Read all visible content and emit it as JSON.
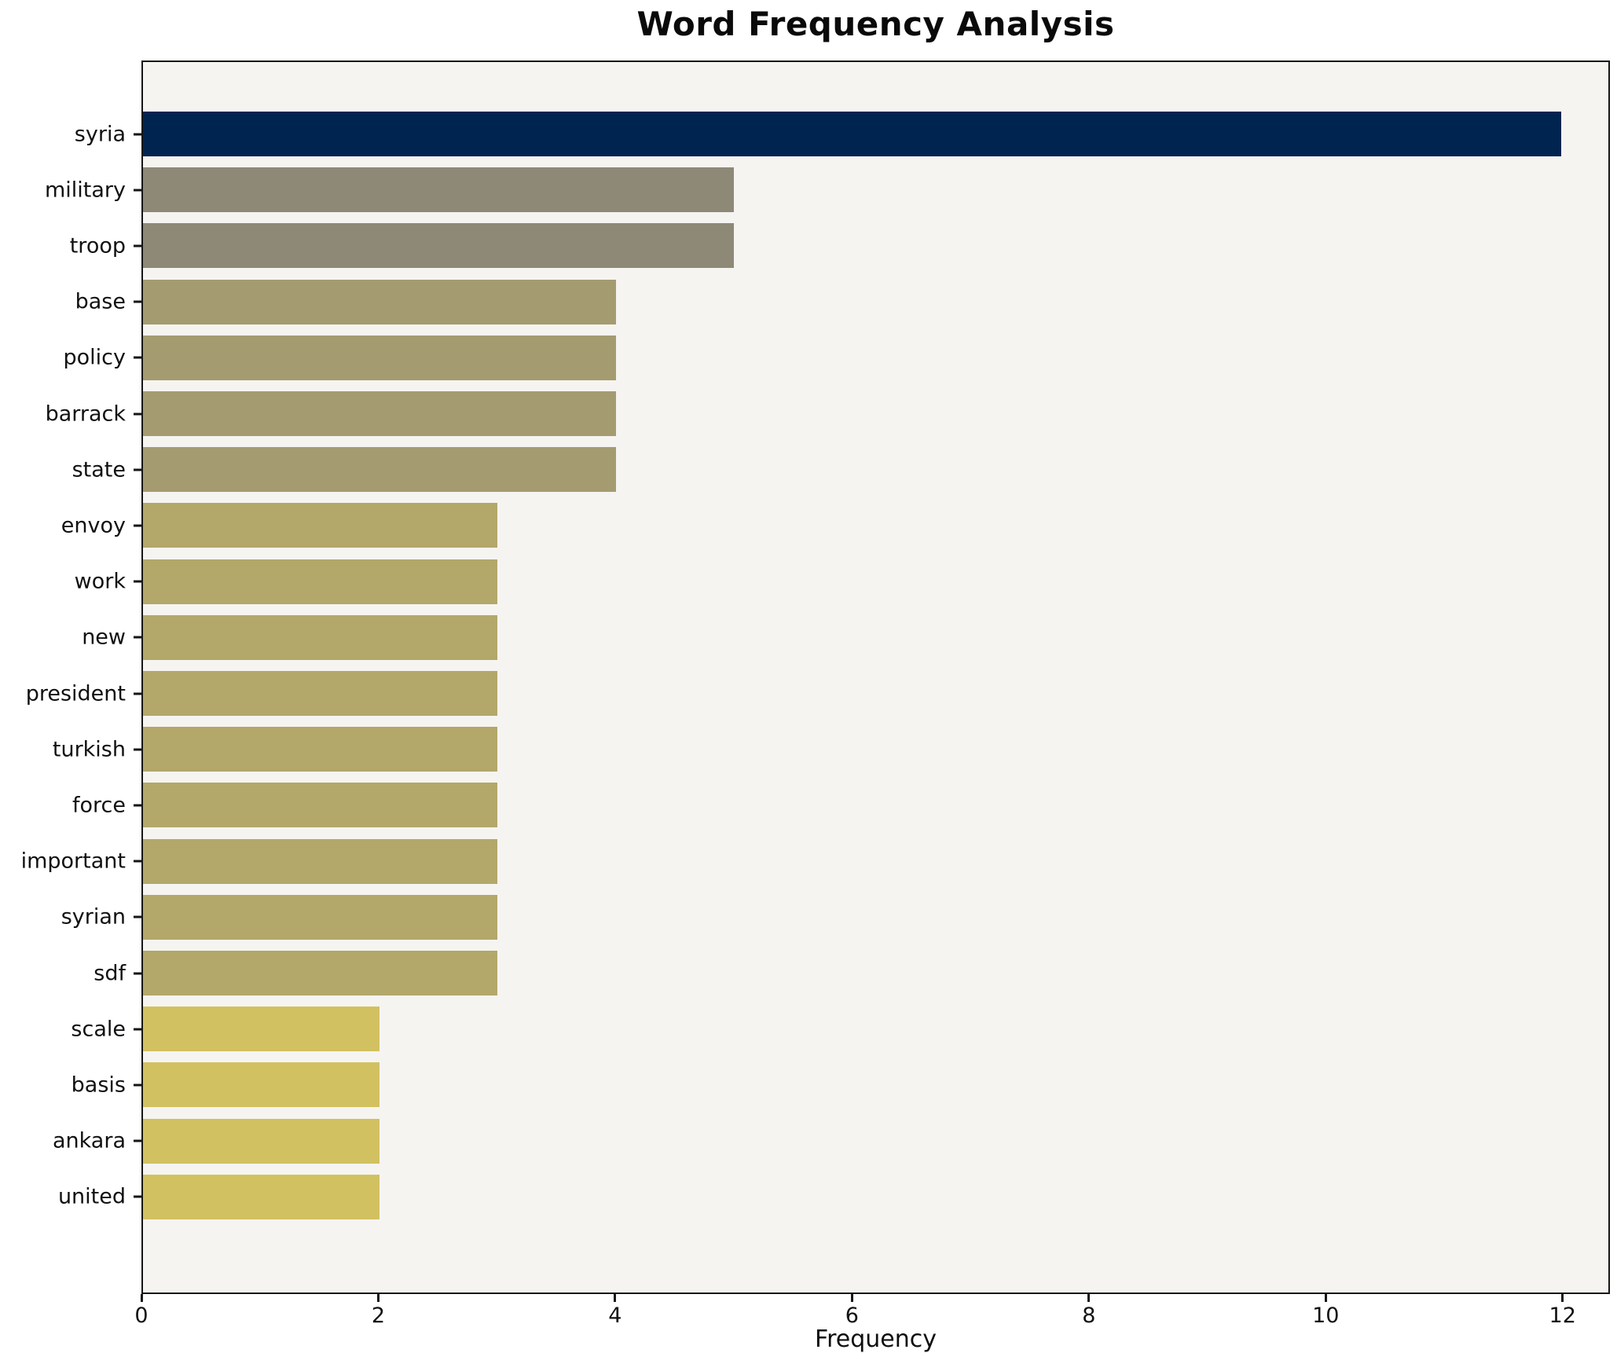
{
  "title": "Word Frequency Analysis",
  "chart_data": {
    "type": "bar",
    "orientation": "horizontal",
    "title": "Word Frequency Analysis",
    "xlabel": "Frequency",
    "ylabel": "",
    "categories": [
      "syria",
      "military",
      "troop",
      "base",
      "policy",
      "barrack",
      "state",
      "envoy",
      "work",
      "new",
      "president",
      "turkish",
      "force",
      "important",
      "syrian",
      "sdf",
      "scale",
      "basis",
      "ankara",
      "united"
    ],
    "values": [
      12,
      5,
      5,
      4,
      4,
      4,
      4,
      3,
      3,
      3,
      3,
      3,
      3,
      3,
      3,
      3,
      2,
      2,
      2,
      2
    ],
    "bar_colors": [
      "#002450",
      "#8e8877",
      "#8e8877",
      "#a49b70",
      "#a49b70",
      "#a49b70",
      "#a49b70",
      "#b3a76a",
      "#b3a76a",
      "#b3a76a",
      "#b3a76a",
      "#b3a76a",
      "#b3a76a",
      "#b3a76a",
      "#b3a76a",
      "#b3a76a",
      "#d2c161",
      "#d2c161",
      "#d2c161",
      "#d2c161"
    ],
    "xticks": [
      0,
      2,
      4,
      6,
      8,
      10,
      12
    ],
    "xlim": [
      0,
      12.4
    ],
    "grid": false,
    "legend_position": "none",
    "plot_background": "#f5f4f1",
    "axis_color": "#161616"
  }
}
